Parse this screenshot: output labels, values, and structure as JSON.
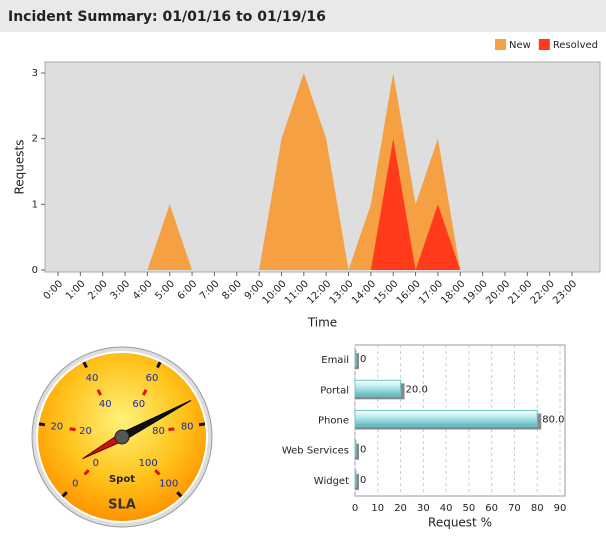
{
  "chart_data": [
    {
      "type": "area",
      "title": "Incident Summary: 01/01/16 to 01/19/16",
      "x_label": "Time",
      "y_label": "Requests",
      "categories": [
        "0:00",
        "1:00",
        "2:00",
        "3:00",
        "4:00",
        "5:00",
        "6:00",
        "7:00",
        "8:00",
        "9:00",
        "10:00",
        "11:00",
        "12:00",
        "13:00",
        "14:00",
        "15:00",
        "16:00",
        "17:00",
        "18:00",
        "19:00",
        "20:00",
        "21:00",
        "22:00",
        "23:00"
      ],
      "series": [
        {
          "name": "New",
          "color": "#f5a043",
          "values": [
            0,
            0,
            0,
            0,
            0,
            1,
            0,
            0,
            0,
            0,
            2,
            3,
            2,
            0,
            1,
            3,
            1,
            2,
            0,
            0,
            0,
            0,
            0,
            0
          ]
        },
        {
          "name": "Resolved",
          "color": "#ff3b1c",
          "values": [
            0,
            0,
            0,
            0,
            0,
            0,
            0,
            0,
            0,
            0,
            0,
            0,
            0,
            0,
            0,
            2,
            0,
            1,
            0,
            0,
            0,
            0,
            0,
            0
          ]
        }
      ],
      "ylim": [
        0,
        3
      ],
      "yticks": [
        0,
        1,
        2,
        3
      ],
      "legend": "top-right"
    },
    {
      "type": "gauge",
      "scales": [
        {
          "name": "SLA",
          "value": 73,
          "lim": [
            0,
            100
          ],
          "ticks": [
            0,
            20,
            40,
            60,
            80,
            100
          ],
          "color": "#111111"
        },
        {
          "name": "Spot",
          "value": 6,
          "lim": [
            0,
            100
          ],
          "ticks": [
            0,
            20,
            40,
            60,
            80,
            100
          ],
          "color": "#cc1111"
        }
      ]
    },
    {
      "type": "hbar",
      "x_label": "Request %",
      "categories": [
        "Email",
        "Portal",
        "Phone",
        "Web Services",
        "Widget"
      ],
      "values": [
        0,
        20,
        80,
        0,
        0
      ],
      "value_labels": [
        "0",
        "20.0",
        "80.0",
        "0",
        "0"
      ],
      "color": "#6fc3c8",
      "xlim": [
        0,
        90
      ],
      "xticks": [
        0,
        10,
        20,
        30,
        40,
        50,
        60,
        70,
        80,
        90
      ],
      "grid": true
    }
  ]
}
